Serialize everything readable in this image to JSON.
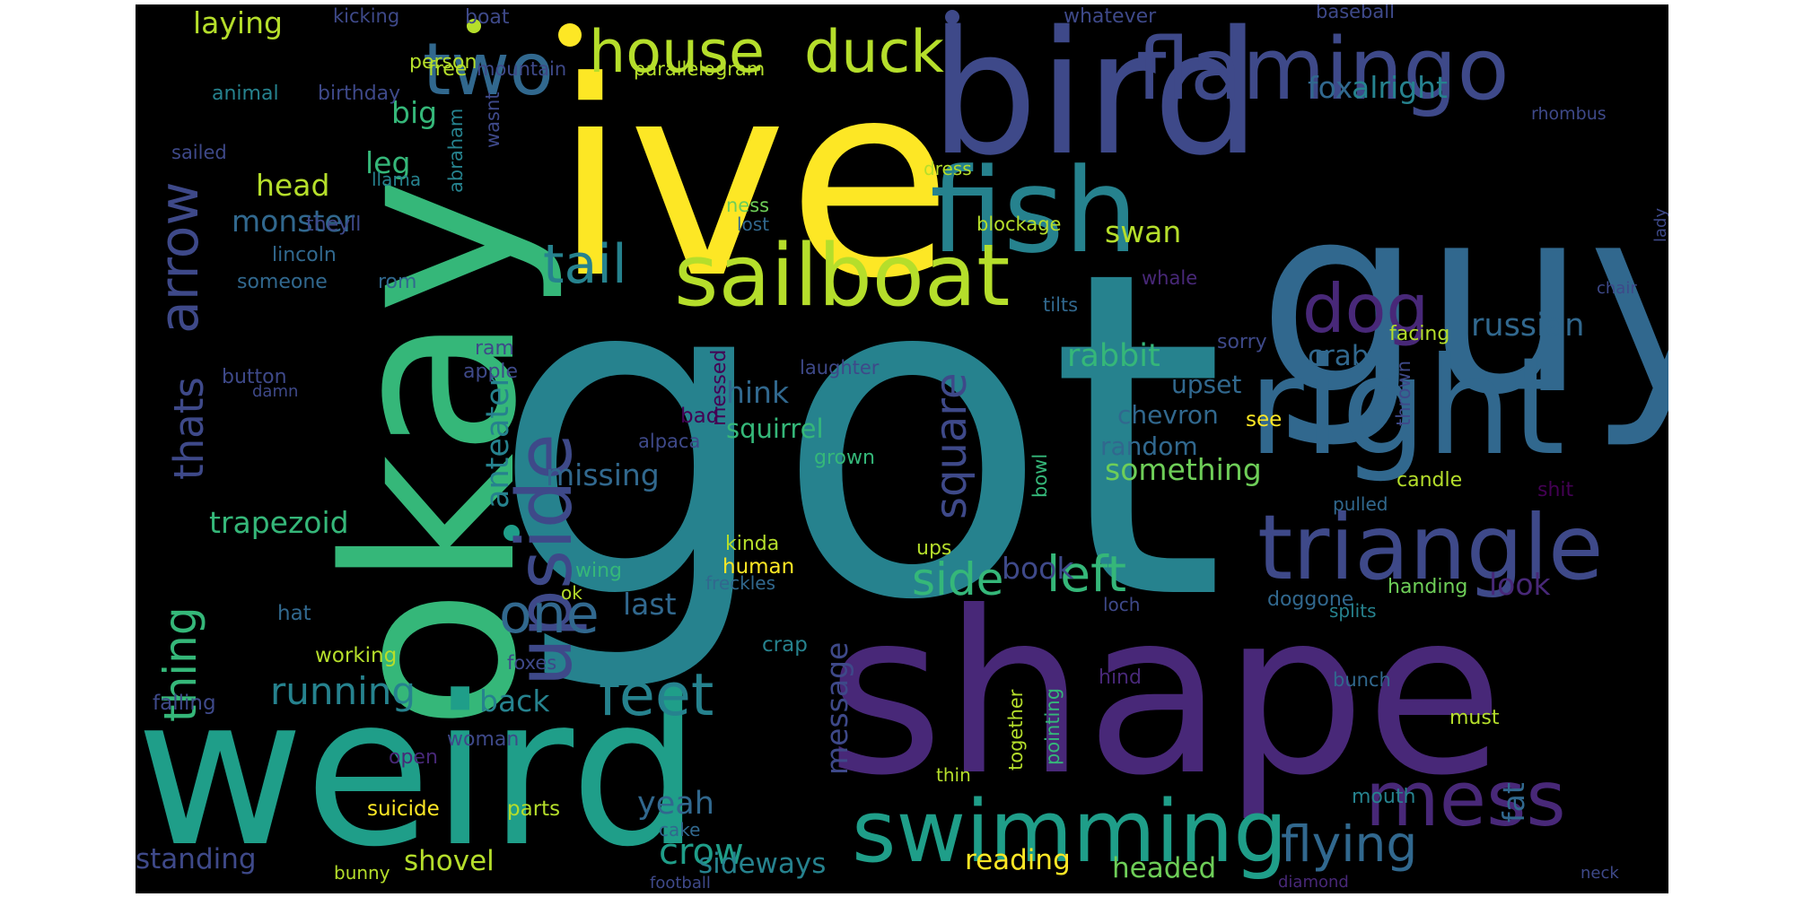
{
  "colors": {
    "background": "#000000",
    "page": "#ffffff",
    "palette": [
      "#440154",
      "#482878",
      "#3e4989",
      "#31688e",
      "#26828e",
      "#1f9e89",
      "#35b779",
      "#6ece58",
      "#b5de2b",
      "#fde725"
    ]
  },
  "words": [
    {
      "text": "got",
      "color": "#26828e"
    },
    {
      "text": "shape",
      "color": "#482878"
    },
    {
      "text": "guy",
      "color": "#31688e"
    },
    {
      "text": "ive",
      "color": "#fde725"
    },
    {
      "text": "okay",
      "color": "#35b779"
    },
    {
      "text": "weird",
      "color": "#1f9e89"
    },
    {
      "text": "bird",
      "color": "#3e4989"
    },
    {
      "text": "fish",
      "color": "#26828e"
    },
    {
      "text": "right",
      "color": "#31688e"
    },
    {
      "text": "triangle",
      "color": "#3e4989"
    },
    {
      "text": "flamingo",
      "color": "#3e4989"
    },
    {
      "text": "sailboat",
      "color": "#b5de2b"
    },
    {
      "text": "swimming",
      "color": "#1f9e89"
    },
    {
      "text": "upside",
      "color": "#3e4989"
    },
    {
      "text": "house",
      "color": "#b5de2b"
    },
    {
      "text": "duck",
      "color": "#b5de2b"
    },
    {
      "text": "two",
      "color": "#31688e"
    },
    {
      "text": "mess",
      "color": "#482878"
    },
    {
      "text": "dog",
      "color": "#482878"
    },
    {
      "text": "tail",
      "color": "#26828e"
    },
    {
      "text": "one",
      "color": "#31688e"
    },
    {
      "text": "arrow",
      "color": "#3e4989"
    },
    {
      "text": "feet",
      "color": "#26828e"
    },
    {
      "text": "flying",
      "color": "#31688e"
    },
    {
      "text": "thing",
      "color": "#35b779"
    },
    {
      "text": "left",
      "color": "#35b779"
    },
    {
      "text": "side",
      "color": "#35b779"
    },
    {
      "text": "square",
      "color": "#3e4989"
    },
    {
      "text": "thats",
      "color": "#3e4989"
    },
    {
      "text": "running",
      "color": "#26828e"
    },
    {
      "text": "crow",
      "color": "#1f9e89"
    },
    {
      "text": "yeah",
      "color": "#31688e"
    },
    {
      "text": "anteater",
      "color": "#26828e"
    },
    {
      "text": "russian",
      "color": "#31688e"
    },
    {
      "text": "rabbit",
      "color": "#35b779"
    },
    {
      "text": "book",
      "color": "#3e4989"
    },
    {
      "text": "trapezoid",
      "color": "#35b779"
    },
    {
      "text": "missing",
      "color": "#31688e"
    },
    {
      "text": "something",
      "color": "#6ece58"
    },
    {
      "text": "monster",
      "color": "#31688e"
    },
    {
      "text": "think",
      "color": "#31688e"
    },
    {
      "text": "message",
      "color": "#3e4989"
    },
    {
      "text": "alright",
      "color": "#26828e"
    },
    {
      "text": "fox",
      "color": "#31688e"
    },
    {
      "text": "swan",
      "color": "#b5de2b"
    },
    {
      "text": "head",
      "color": "#b5de2b"
    },
    {
      "text": "big",
      "color": "#35b779"
    },
    {
      "text": "leg",
      "color": "#35b779"
    },
    {
      "text": "laying",
      "color": "#b5de2b"
    },
    {
      "text": "back",
      "color": "#26828e"
    },
    {
      "text": "last",
      "color": "#31688e"
    },
    {
      "text": "look",
      "color": "#482878"
    },
    {
      "text": "fat",
      "color": "#31688e"
    },
    {
      "text": "sideways",
      "color": "#26828e"
    },
    {
      "text": "shovel",
      "color": "#b5de2b"
    },
    {
      "text": "reading",
      "color": "#fde725"
    },
    {
      "text": "headed",
      "color": "#6ece58"
    },
    {
      "text": "standing",
      "color": "#3e4989"
    },
    {
      "text": "crab",
      "color": "#31688e"
    },
    {
      "text": "squirrel",
      "color": "#35b779"
    },
    {
      "text": "chevron",
      "color": "#31688e"
    },
    {
      "text": "upset",
      "color": "#31688e"
    },
    {
      "text": "random",
      "color": "#31688e"
    },
    {
      "text": "whatever",
      "color": "#3e4989"
    },
    {
      "text": "kicking",
      "color": "#3e4989"
    },
    {
      "text": "boat",
      "color": "#3e4989"
    },
    {
      "text": "baseball",
      "color": "#3e4989"
    },
    {
      "text": "animal",
      "color": "#26828e"
    },
    {
      "text": "free",
      "color": "#b5de2b"
    },
    {
      "text": "person",
      "color": "#b5de2b"
    },
    {
      "text": "mountain",
      "color": "#3e4989"
    },
    {
      "text": "parallelogram",
      "color": "#b5de2b"
    },
    {
      "text": "birthday",
      "color": "#3e4989"
    },
    {
      "text": "abraham",
      "color": "#26828e"
    },
    {
      "text": "wasnt",
      "color": "#3e4989"
    },
    {
      "text": "rhombus",
      "color": "#3e4989"
    },
    {
      "text": "sailed",
      "color": "#3e4989"
    },
    {
      "text": "llama",
      "color": "#26828e"
    },
    {
      "text": "dress",
      "color": "#b5de2b"
    },
    {
      "text": "ness",
      "color": "#6ece58"
    },
    {
      "text": "lost",
      "color": "#31688e"
    },
    {
      "text": "blockage",
      "color": "#b5de2b"
    },
    {
      "text": "theyll",
      "color": "#3e4989"
    },
    {
      "text": "lincoln",
      "color": "#31688e"
    },
    {
      "text": "lady",
      "color": "#3e4989"
    },
    {
      "text": "someone",
      "color": "#31688e"
    },
    {
      "text": "rom",
      "color": "#31688e"
    },
    {
      "text": "whale",
      "color": "#482878"
    },
    {
      "text": "tilts",
      "color": "#31688e"
    },
    {
      "text": "chair",
      "color": "#3e4989"
    },
    {
      "text": "facing",
      "color": "#b5de2b"
    },
    {
      "text": "sorry",
      "color": "#3e4989"
    },
    {
      "text": "ram",
      "color": "#3e4989"
    },
    {
      "text": "messed",
      "color": "#440154"
    },
    {
      "text": "apple",
      "color": "#3e4989"
    },
    {
      "text": "button",
      "color": "#3e4989"
    },
    {
      "text": "damn",
      "color": "#3e4989"
    },
    {
      "text": "laughter",
      "color": "#3e4989"
    },
    {
      "text": "thrown",
      "color": "#3e4989"
    },
    {
      "text": "bad",
      "color": "#440154"
    },
    {
      "text": "see",
      "color": "#fde725"
    },
    {
      "text": "alpaca",
      "color": "#3e4989"
    },
    {
      "text": "grown",
      "color": "#35b779"
    },
    {
      "text": "bowl",
      "color": "#35b779"
    },
    {
      "text": "candle",
      "color": "#b5de2b"
    },
    {
      "text": "shit",
      "color": "#440154"
    },
    {
      "text": "pulled",
      "color": "#31688e"
    },
    {
      "text": "kinda",
      "color": "#b5de2b"
    },
    {
      "text": "ups",
      "color": "#b5de2b"
    },
    {
      "text": "human",
      "color": "#fde725"
    },
    {
      "text": "wing",
      "color": "#35b779"
    },
    {
      "text": "freckles",
      "color": "#31688e"
    },
    {
      "text": "ok",
      "color": "#b5de2b"
    },
    {
      "text": "handing",
      "color": "#6ece58"
    },
    {
      "text": "doggone",
      "color": "#31688e"
    },
    {
      "text": "loch",
      "color": "#3e4989"
    },
    {
      "text": "splits",
      "color": "#26828e"
    },
    {
      "text": "hat",
      "color": "#31688e"
    },
    {
      "text": "working",
      "color": "#b5de2b"
    },
    {
      "text": "crap",
      "color": "#26828e"
    },
    {
      "text": "foxes",
      "color": "#3e4989"
    },
    {
      "text": "falling",
      "color": "#3e4989"
    },
    {
      "text": "together",
      "color": "#b5de2b"
    },
    {
      "text": "pointing",
      "color": "#35b779"
    },
    {
      "text": "hind",
      "color": "#482878"
    },
    {
      "text": "bunch",
      "color": "#31688e"
    },
    {
      "text": "must",
      "color": "#b5de2b"
    },
    {
      "text": "woman",
      "color": "#3e4989"
    },
    {
      "text": "open",
      "color": "#482878"
    },
    {
      "text": "thin",
      "color": "#b5de2b"
    },
    {
      "text": "suicide",
      "color": "#fde725"
    },
    {
      "text": "parts",
      "color": "#b5de2b"
    },
    {
      "text": "mouth",
      "color": "#26828e"
    },
    {
      "text": "cake",
      "color": "#31688e"
    },
    {
      "text": "bunny",
      "color": "#b5de2b"
    },
    {
      "text": "football",
      "color": "#3e4989"
    },
    {
      "text": "diamond",
      "color": "#482878"
    },
    {
      "text": "neck",
      "color": "#3e4989"
    }
  ],
  "dots": [
    {
      "color": "#fde725"
    },
    {
      "color": "#b5de2b"
    },
    {
      "color": "#3e4989"
    },
    {
      "color": "#1f9e89"
    }
  ]
}
